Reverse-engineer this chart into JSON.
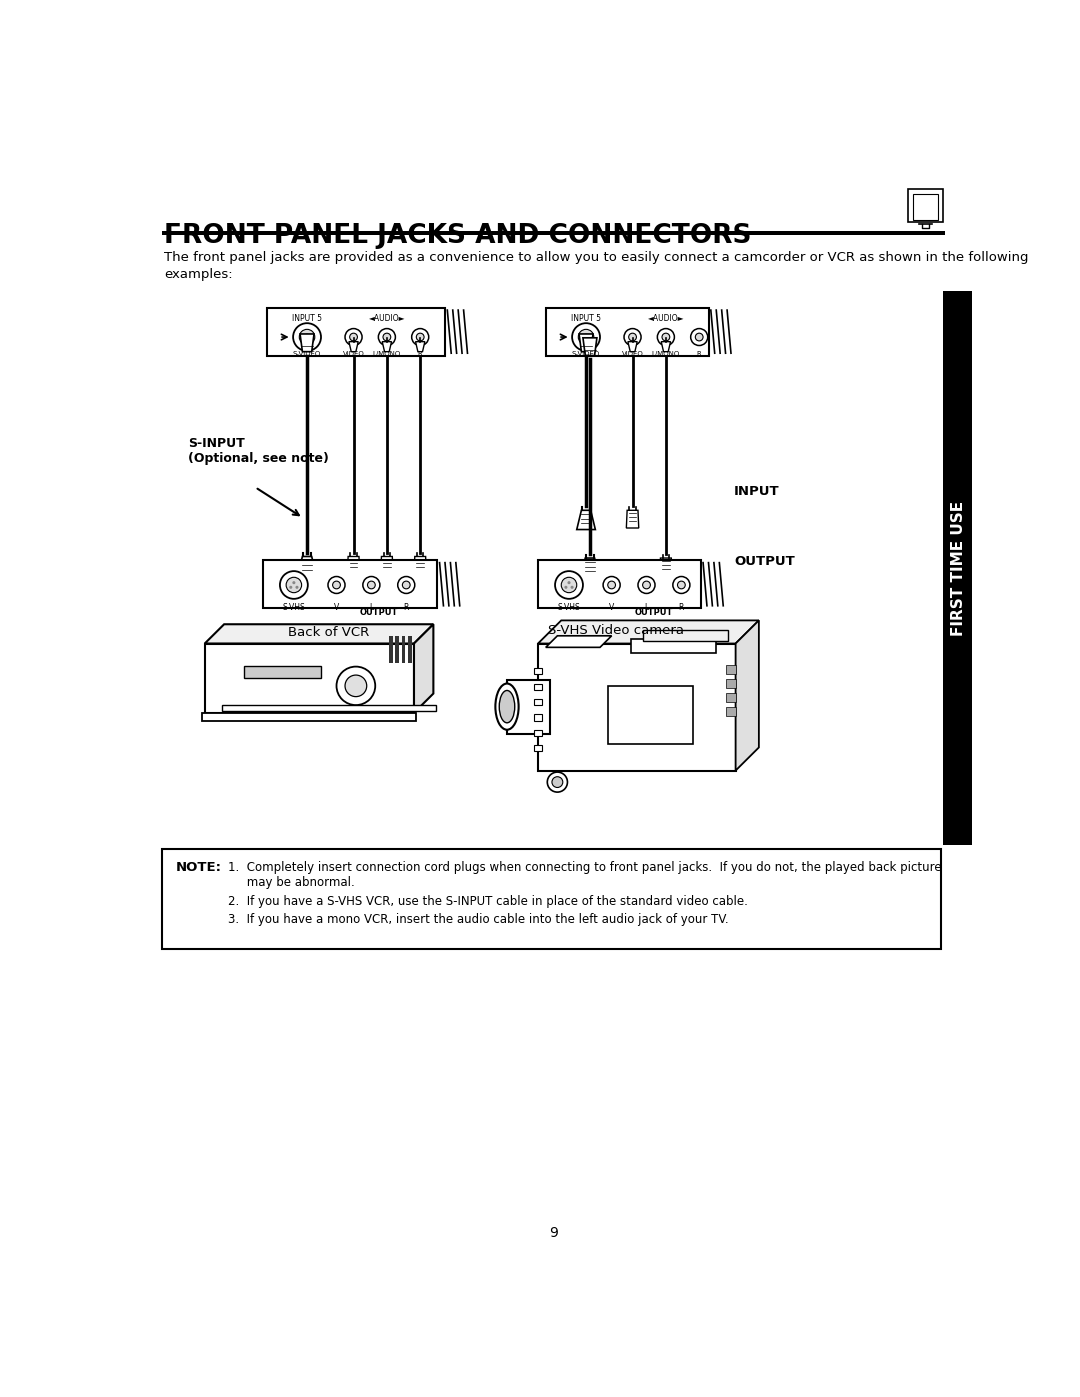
{
  "title": "FRONT PANEL JACKS AND CONNECTORS",
  "intro_text": "The front panel jacks are provided as a convenience to allow you to easily connect a camcorder or VCR as shown in the following\nexamples:",
  "sidebar_text": "FIRST TIME USE",
  "left_diagram_label": "Back of VCR",
  "right_diagram_label": "S-VHS Video camera",
  "left_sinput_label": "S-INPUT\n(Optional, see note)",
  "right_input_label": "INPUT",
  "right_output_label": "OUTPUT",
  "note_label": "NOTE:",
  "note_line1": "1.  Completely insert connection cord plugs when connecting to front panel jacks.  If you do not, the played back picture",
  "note_line1b": "     may be abnormal.",
  "note_line2": "2.  If you have a S-VHS VCR, use the S-INPUT cable in place of the standard video cable.",
  "note_line3": "3.  If you have a mono VCR, insert the audio cable into the left audio jack of your TV.",
  "page_number": "9",
  "bg_color": "#ffffff",
  "text_color": "#000000"
}
